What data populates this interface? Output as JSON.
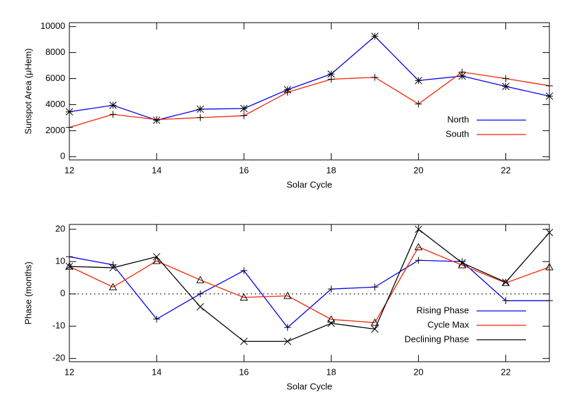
{
  "chart_data": [
    {
      "type": "line",
      "xlabel": "Solar Cycle",
      "ylabel": "Sunspot Area (μHem)",
      "x": [
        12,
        13,
        14,
        15,
        16,
        17,
        18,
        19,
        20,
        21,
        22,
        23
      ],
      "xlim": [
        12,
        23
      ],
      "xticks": [
        12,
        14,
        16,
        18,
        20,
        22
      ],
      "ylim": [
        -250,
        10300
      ],
      "yticks": [
        0,
        2000,
        4000,
        6000,
        8000,
        10000
      ],
      "series": [
        {
          "name": "North",
          "color": "#0000ee",
          "marker": "asterisk",
          "values": [
            3450,
            3950,
            2800,
            3650,
            3700,
            5150,
            6350,
            9250,
            5850,
            6200,
            5400,
            4650
          ]
        },
        {
          "name": "South",
          "color": "#ee2200",
          "marker": "plus",
          "values": [
            2250,
            3250,
            2850,
            3000,
            3150,
            4950,
            5950,
            6100,
            4050,
            6500,
            6000,
            5450
          ]
        }
      ]
    },
    {
      "type": "line",
      "xlabel": "Solar Cycle",
      "ylabel": "Phase (months)",
      "x": [
        12,
        13,
        14,
        15,
        16,
        17,
        18,
        19,
        20,
        21,
        22,
        23
      ],
      "xlim": [
        12,
        23
      ],
      "xticks": [
        12,
        14,
        16,
        18,
        20,
        22
      ],
      "ylim": [
        -21,
        21.5
      ],
      "yticks": [
        -20,
        -10,
        0,
        10,
        20
      ],
      "zero_line": true,
      "series": [
        {
          "name": "Rising Phase",
          "color": "#0000ee",
          "marker": "plus",
          "values": [
            11.5,
            9,
            -7.8,
            0,
            7.2,
            -10.4,
            1.5,
            2.1,
            10.4,
            10,
            -2.1,
            -2.1
          ]
        },
        {
          "name": "Cycle Max",
          "color": "#ee2200",
          "marker": "triangle",
          "values": [
            8.5,
            2.1,
            10.2,
            4.3,
            -1.1,
            -0.6,
            -7.9,
            -8.9,
            14.5,
            8.9,
            3.4,
            8.3
          ]
        },
        {
          "name": "Declining Phase",
          "color": "#000000",
          "marker": "x",
          "values": [
            8.5,
            8.1,
            11.5,
            -4,
            -14.7,
            -14.7,
            -9.1,
            -10.9,
            20,
            9.6,
            3.6,
            19
          ]
        }
      ]
    }
  ]
}
